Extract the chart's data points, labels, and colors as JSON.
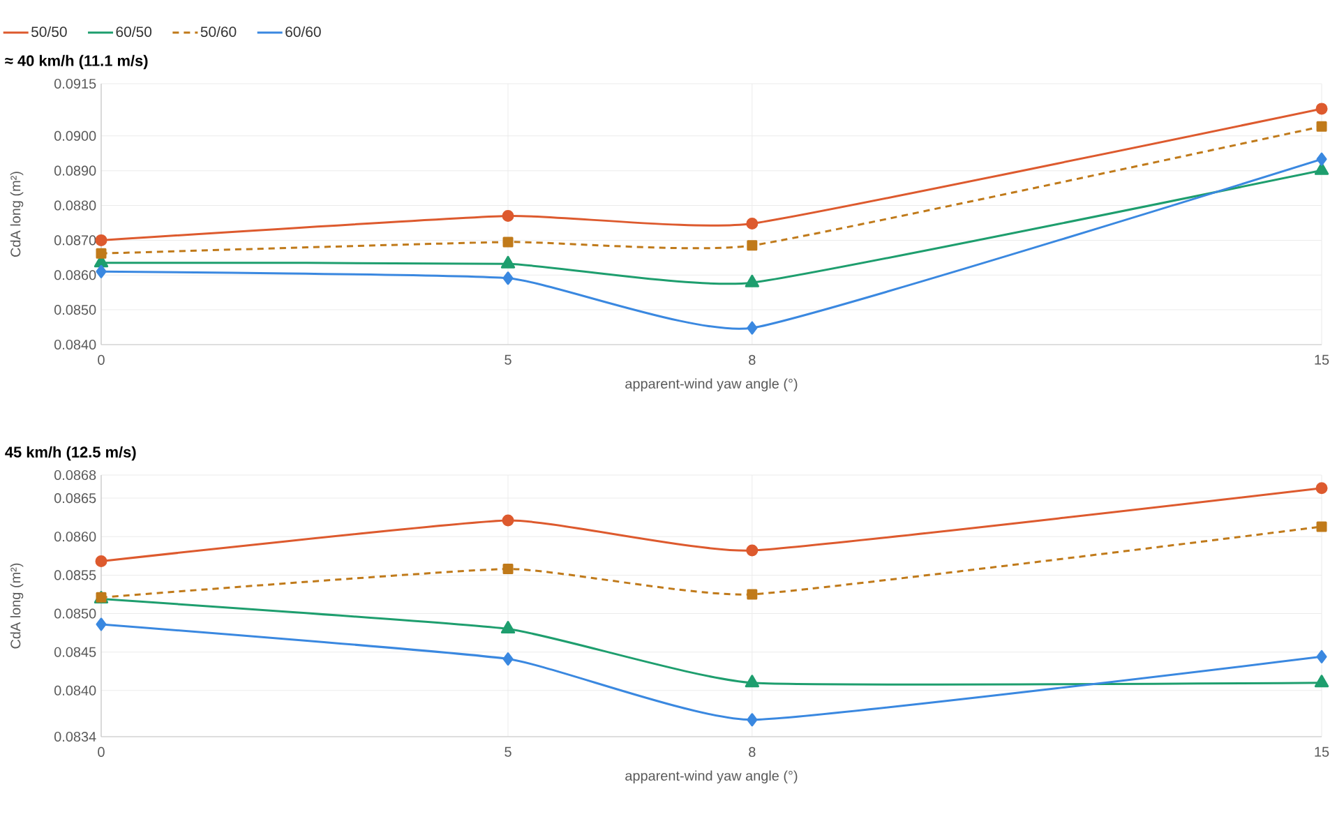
{
  "chart_data": [
    {
      "type": "line",
      "title": "≈ 40 km/h (11.1 m/s)",
      "xlabel": "apparent-wind yaw angle (°)",
      "ylabel": "CdA long (m²)",
      "x": [
        0,
        5,
        8,
        15
      ],
      "xlim": [
        0,
        15
      ],
      "xticks": [
        0,
        5,
        8,
        15
      ],
      "ylim": [
        0.084,
        0.0915
      ],
      "yticks": [
        {
          "value": 0.084,
          "label": "0.0840"
        },
        {
          "value": 0.085,
          "label": "0.0850"
        },
        {
          "value": 0.086,
          "label": "0.0860"
        },
        {
          "value": 0.087,
          "label": "0.0870"
        },
        {
          "value": 0.088,
          "label": "0.0880"
        },
        {
          "value": 0.089,
          "label": "0.0890"
        },
        {
          "value": 0.09,
          "label": "0.0900"
        },
        {
          "value": 0.0915,
          "label": "0.0915"
        }
      ],
      "grid": true,
      "legend": "top",
      "series": [
        {
          "name": "50/50",
          "color": "#dd5a2e",
          "marker": "circle",
          "line_style": "solid",
          "values": [
            0.087,
            0.0877,
            0.08748,
            0.09078
          ]
        },
        {
          "name": "60/50",
          "color": "#1e9e6e",
          "marker": "triangle",
          "line_style": "solid",
          "values": [
            0.08635,
            0.08632,
            0.08578,
            0.08901
          ]
        },
        {
          "name": "50/60",
          "color": "#c07a1a",
          "marker": "square",
          "line_style": "dashed",
          "values": [
            0.08662,
            0.08695,
            0.08685,
            0.09027
          ]
        },
        {
          "name": "60/60",
          "color": "#3a88e0",
          "marker": "diamond",
          "line_style": "solid",
          "values": [
            0.0861,
            0.08591,
            0.08448,
            0.08933
          ]
        }
      ]
    },
    {
      "type": "line",
      "title": "45 km/h (12.5 m/s)",
      "xlabel": "apparent-wind yaw angle (°)",
      "ylabel": "CdA long (m²)",
      "x": [
        0,
        5,
        8,
        15
      ],
      "xlim": [
        0,
        15
      ],
      "xticks": [
        0,
        5,
        8,
        15
      ],
      "ylim": [
        0.0834,
        0.0868
      ],
      "yticks": [
        {
          "value": 0.0834,
          "label": "0.0834"
        },
        {
          "value": 0.084,
          "label": "0.0840"
        },
        {
          "value": 0.0845,
          "label": "0.0845"
        },
        {
          "value": 0.085,
          "label": "0.0850"
        },
        {
          "value": 0.0855,
          "label": "0.0855"
        },
        {
          "value": 0.086,
          "label": "0.0860"
        },
        {
          "value": 0.0865,
          "label": "0.0865"
        },
        {
          "value": 0.0868,
          "label": "0.0868"
        }
      ],
      "grid": true,
      "series": [
        {
          "color": "#dd5a2e",
          "marker": "circle",
          "line_style": "solid",
          "values": [
            0.08568,
            0.08621,
            0.08582,
            0.08663
          ]
        },
        {
          "color": "#1e9e6e",
          "marker": "triangle",
          "line_style": "solid",
          "values": [
            0.08519,
            0.0848,
            0.0841,
            0.0841
          ]
        },
        {
          "color": "#c07a1a",
          "marker": "square",
          "line_style": "dashed",
          "values": [
            0.08521,
            0.08558,
            0.08525,
            0.08613
          ]
        },
        {
          "color": "#3a88e0",
          "marker": "diamond",
          "line_style": "solid",
          "values": [
            0.08486,
            0.08441,
            0.08362,
            0.08444
          ]
        }
      ]
    }
  ]
}
